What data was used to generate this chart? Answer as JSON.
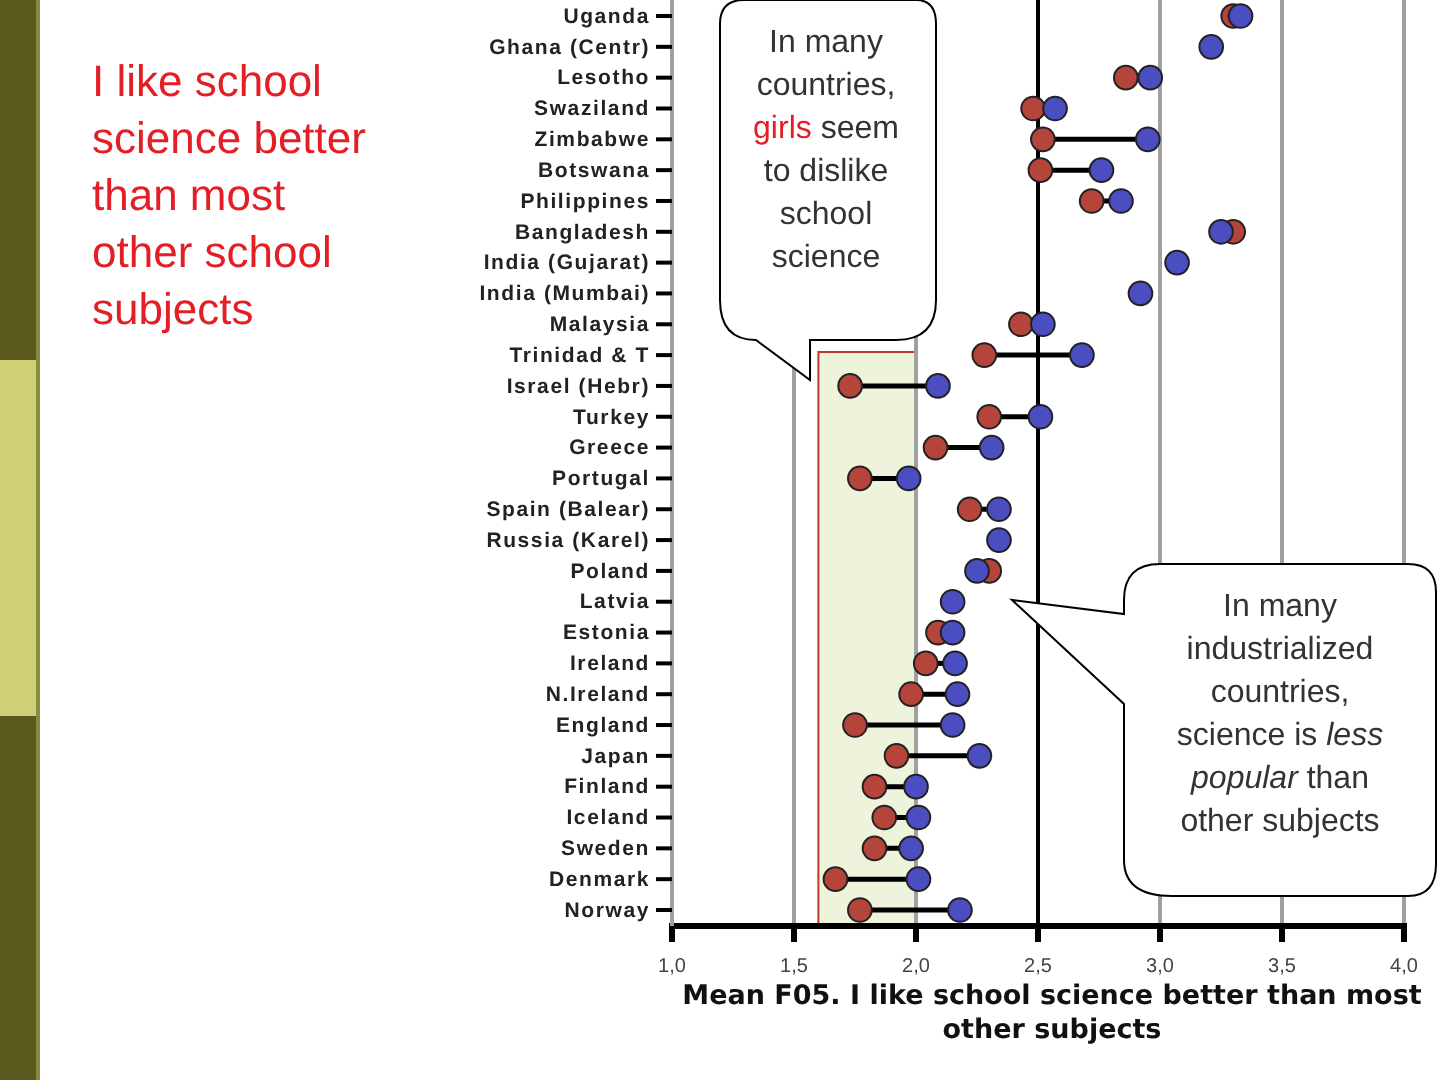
{
  "chart_data": {
    "type": "scatter",
    "orientation": "horizontal",
    "title": "I like school science better than most other school subjects",
    "xlabel": "Mean F05. I like school science better than most other subjects",
    "categories": [
      "Uganda",
      "Ghana (Centr)",
      "Lesotho",
      "Swaziland",
      "Zimbabwe",
      "Botswana",
      "Philippines",
      "Bangladesh",
      "India (Gujarat)",
      "India (Mumbai)",
      "Malaysia",
      "Trinidad & T",
      "Israel (Hebr)",
      "Turkey",
      "Greece",
      "Portugal",
      "Spain (Balear)",
      "Russia (Karel)",
      "Poland",
      "Latvia",
      "Estonia",
      "Ireland",
      "N.Ireland",
      "England",
      "Japan",
      "Finland",
      "Iceland",
      "Sweden",
      "Denmark",
      "Norway"
    ],
    "series": [
      {
        "color": "#b5443a",
        "values": [
          3.3,
          null,
          2.86,
          2.48,
          2.52,
          2.51,
          2.72,
          3.3,
          null,
          null,
          2.43,
          2.28,
          1.73,
          2.3,
          2.08,
          1.77,
          2.22,
          null,
          2.3,
          null,
          2.09,
          2.04,
          1.98,
          1.75,
          1.92,
          1.83,
          1.87,
          1.83,
          1.67,
          1.77
        ]
      },
      {
        "color": "#4a4ec0",
        "values": [
          3.33,
          3.21,
          2.96,
          2.57,
          2.95,
          2.76,
          2.84,
          3.25,
          3.07,
          2.92,
          2.52,
          2.68,
          2.09,
          2.51,
          2.31,
          1.97,
          2.34,
          2.34,
          2.25,
          2.15,
          2.15,
          2.16,
          2.17,
          2.15,
          2.26,
          2,
          2.01,
          1.98,
          2.01,
          2.18
        ]
      }
    ],
    "marker": "circle",
    "xlim": [
      1,
      4
    ],
    "xticks": [
      {
        "value": 1,
        "label": "1,0"
      },
      {
        "value": 1.5,
        "label": "1,5"
      },
      {
        "value": 2,
        "label": "2,0"
      },
      {
        "value": 2.5,
        "label": "2,5"
      },
      {
        "value": 3,
        "label": "3,0"
      },
      {
        "value": 3.5,
        "label": "3,5"
      },
      {
        "value": 4,
        "label": "4,0"
      }
    ],
    "grid": "x",
    "ref_lines": [
      {
        "axis": "x",
        "value": 2.5,
        "color": "#000000"
      }
    ],
    "bands": [
      {
        "axis": "x",
        "from": 1.6,
        "to": 2,
        "color": "#eef3dc"
      }
    ],
    "annotations": [
      "In many countries, girls seem to dislike school science",
      "In many industrialized countries, science is less popular than other subjects"
    ]
  }
}
